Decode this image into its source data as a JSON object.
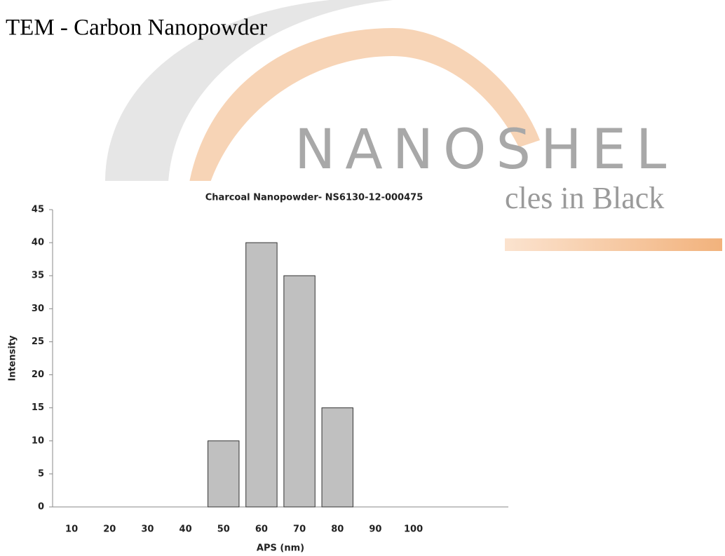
{
  "page_title": "TEM - Carbon Nanopowder",
  "watermark": {
    "brand": "NANOSHEL",
    "tagline": "cles in Black"
  },
  "chart_data": {
    "type": "bar",
    "title": "Charcoal Nanopowder- NS6130-12-000475",
    "x_label": "APS (nm)",
    "y_label": "Intensity",
    "categories": [
      "10",
      "20",
      "30",
      "40",
      "50",
      "60",
      "70",
      "80",
      "90",
      "100",
      null,
      null
    ],
    "values": [
      0,
      0,
      0,
      0,
      10,
      40,
      35,
      15,
      0,
      0,
      null,
      null
    ],
    "color": "#c0c0c0",
    "ylim": [
      0,
      45
    ],
    "yticks": [
      0,
      5,
      10,
      15,
      20,
      25,
      30,
      35,
      40,
      45
    ],
    "grid": false
  }
}
